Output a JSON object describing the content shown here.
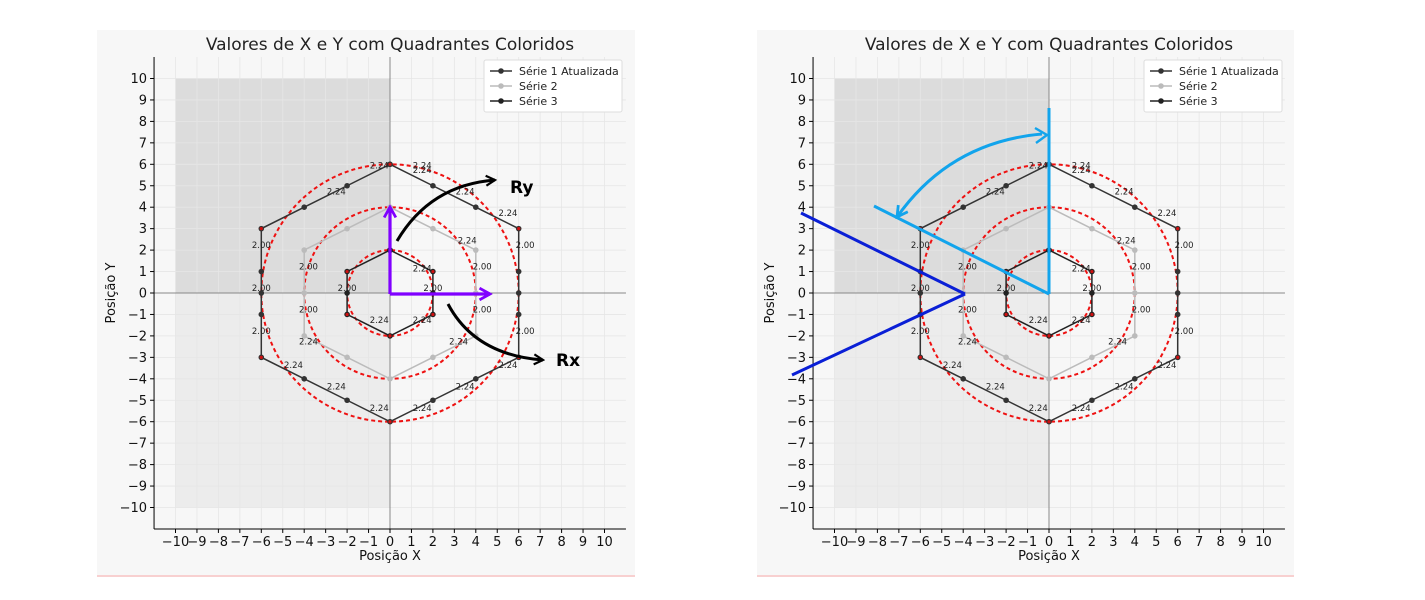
{
  "chart_data": [
    {
      "type": "line",
      "title": "Valores de X e Y com Quadrantes Coloridos",
      "xlabel": "Posição X",
      "ylabel": "Posição Y",
      "xlim": [
        -11,
        11
      ],
      "ylim": [
        -11,
        11
      ],
      "xticks": [
        -10,
        -9,
        -8,
        -7,
        -6,
        -5,
        -4,
        -3,
        -2,
        -1,
        0,
        1,
        2,
        3,
        4,
        5,
        6,
        7,
        8,
        9,
        10
      ],
      "yticks": [
        -10,
        -9,
        -8,
        -7,
        -6,
        -5,
        -4,
        -3,
        -2,
        -1,
        0,
        1,
        2,
        3,
        4,
        5,
        6,
        7,
        8,
        9,
        10
      ],
      "grid": true,
      "legend_position": "top-right",
      "shaded_quadrants": [
        {
          "x": [
            -10,
            0
          ],
          "y": [
            0,
            10
          ],
          "color": "#dcdcdc"
        },
        {
          "x": [
            -10,
            0
          ],
          "y": [
            -10,
            0
          ],
          "color": "#ececec"
        }
      ],
      "series": [
        {
          "name": "Série 1 Atualizada",
          "color": "#333333",
          "x": [
            0,
            2,
            4,
            6,
            6,
            6,
            6,
            6,
            4,
            2,
            0,
            -2,
            -4,
            -6,
            -6,
            -6,
            -6,
            -6,
            -4,
            -2,
            0
          ],
          "y": [
            6,
            5,
            4,
            3,
            1,
            0,
            -1,
            -3,
            -4,
            -5,
            -6,
            -5,
            -4,
            -3,
            -1,
            0,
            1,
            3,
            4,
            5,
            6
          ]
        },
        {
          "name": "Série 2",
          "color": "#bbbbbb",
          "x": [
            0,
            2,
            4,
            4,
            4,
            2,
            0,
            -2,
            -4,
            -4,
            -4,
            -2,
            0
          ],
          "y": [
            4,
            3,
            2,
            0,
            -2,
            -3,
            -4,
            -3,
            -2,
            0,
            2,
            3,
            4
          ]
        },
        {
          "name": "Série 3",
          "color": "#222222",
          "x": [
            0,
            2,
            2,
            2,
            0,
            -2,
            -2,
            -2,
            0
          ],
          "y": [
            2,
            1,
            0,
            -1,
            -2,
            -1,
            0,
            1,
            2
          ]
        }
      ],
      "circles": [
        {
          "radius": 2,
          "color": "#ee1111",
          "style": "dashed"
        },
        {
          "radius": 4,
          "color": "#ee1111",
          "style": "dashed"
        },
        {
          "radius": 6,
          "color": "#ee1111",
          "style": "dashed"
        }
      ],
      "edge_labels": [
        {
          "text": "2.24",
          "x": -0.5,
          "y": 5.8
        },
        {
          "text": "2.24",
          "x": 1.5,
          "y": 5.8
        },
        {
          "text": "2.24",
          "x": -2.5,
          "y": 4.6
        },
        {
          "text": "2.24",
          "x": 3.5,
          "y": 4.6
        },
        {
          "text": "2.24",
          "x": 5.5,
          "y": 3.6
        },
        {
          "text": "2.24",
          "x": 5.5,
          "y": -3.5
        },
        {
          "text": "2.24",
          "x": -4.5,
          "y": -3.5
        },
        {
          "text": "2.24",
          "x": -2.5,
          "y": -4.5
        },
        {
          "text": "2.24",
          "x": 3.5,
          "y": -4.5
        },
        {
          "text": "2.24",
          "x": -0.5,
          "y": -5.5
        },
        {
          "text": "2.24",
          "x": 1.5,
          "y": -5.5
        },
        {
          "text": "2.24",
          "x": -0.5,
          "y": -1.4
        },
        {
          "text": "2.24",
          "x": 1.5,
          "y": -1.4
        },
        {
          "text": "2.24",
          "x": 1.5,
          "y": 5.6
        },
        {
          "text": "2.24",
          "x": -3.8,
          "y": -2.4
        },
        {
          "text": "2.24",
          "x": 3.2,
          "y": -2.4
        },
        {
          "text": "2.24",
          "x": 3.6,
          "y": 2.3
        },
        {
          "text": "2.24",
          "x": 1.5,
          "y": 1.0
        },
        {
          "text": "2.00",
          "x": -6.0,
          "y": 2.1
        },
        {
          "text": "2.00",
          "x": -6.0,
          "y": 0.1
        },
        {
          "text": "2.00",
          "x": -6.0,
          "y": -1.9
        },
        {
          "text": "2.00",
          "x": 6.3,
          "y": 2.1
        },
        {
          "text": "2.00",
          "x": 6.3,
          "y": -1.9
        },
        {
          "text": "2.00",
          "x": -3.8,
          "y": 1.1
        },
        {
          "text": "2.00",
          "x": -3.8,
          "y": -0.9
        },
        {
          "text": "2.00",
          "x": -2.0,
          "y": 0.1
        },
        {
          "text": "2.00",
          "x": 2.0,
          "y": 0.1
        },
        {
          "text": "2.00",
          "x": 4.3,
          "y": 1.1
        },
        {
          "text": "2.00",
          "x": 4.3,
          "y": -0.9
        }
      ]
    },
    {
      "type": "line",
      "title": "Valores de X e Y com Quadrantes Coloridos",
      "xlabel": "Posição X",
      "ylabel": "Posição Y",
      "xlim": [
        -11,
        11
      ],
      "ylim": [
        -11,
        11
      ],
      "xticks": [
        -10,
        -9,
        -8,
        -7,
        -6,
        -5,
        -4,
        -3,
        -2,
        -1,
        0,
        1,
        2,
        3,
        4,
        5,
        6,
        7,
        8,
        9,
        10
      ],
      "yticks": [
        -10,
        -9,
        -8,
        -7,
        -6,
        -5,
        -4,
        -3,
        -2,
        -1,
        0,
        1,
        2,
        3,
        4,
        5,
        6,
        7,
        8,
        9,
        10
      ],
      "grid": true,
      "legend_position": "top-right",
      "shaded_quadrants": [
        {
          "x": [
            -10,
            0
          ],
          "y": [
            0,
            10
          ],
          "color": "#dcdcdc"
        },
        {
          "x": [
            -10,
            0
          ],
          "y": [
            -10,
            0
          ],
          "color": "#ececec"
        }
      ],
      "series": [
        {
          "name": "Série 1 Atualizada",
          "color": "#333333",
          "x": [
            0,
            2,
            4,
            6,
            6,
            6,
            6,
            6,
            4,
            2,
            0,
            -2,
            -4,
            -6,
            -6,
            -6,
            -6,
            -6,
            -4,
            -2,
            0
          ],
          "y": [
            6,
            5,
            4,
            3,
            1,
            0,
            -1,
            -3,
            -4,
            -5,
            -6,
            -5,
            -4,
            -3,
            -1,
            0,
            1,
            3,
            4,
            5,
            6
          ]
        },
        {
          "name": "Série 2",
          "color": "#bbbbbb",
          "x": [
            0,
            2,
            4,
            4,
            4,
            2,
            0,
            -2,
            -4,
            -4,
            -4,
            -2,
            0
          ],
          "y": [
            4,
            3,
            2,
            0,
            -2,
            -3,
            -4,
            -3,
            -2,
            0,
            2,
            3,
            4
          ]
        },
        {
          "name": "Série 3",
          "color": "#222222",
          "x": [
            0,
            2,
            2,
            2,
            0,
            -2,
            -2,
            -2,
            0
          ],
          "y": [
            2,
            1,
            0,
            -1,
            -2,
            -1,
            0,
            1,
            2
          ]
        }
      ],
      "circles": [
        {
          "radius": 2,
          "color": "#ee1111",
          "style": "dashed"
        },
        {
          "radius": 4,
          "color": "#ee1111",
          "style": "dashed"
        },
        {
          "radius": 6,
          "color": "#ee1111",
          "style": "dashed"
        }
      ],
      "edge_labels": [
        {
          "text": "2.24",
          "x": -0.5,
          "y": 5.8
        },
        {
          "text": "2.24",
          "x": 1.5,
          "y": 5.8
        },
        {
          "text": "2.24",
          "x": -2.5,
          "y": 4.6
        },
        {
          "text": "2.24",
          "x": 3.5,
          "y": 4.6
        },
        {
          "text": "2.24",
          "x": 5.5,
          "y": 3.6
        },
        {
          "text": "2.24",
          "x": 5.5,
          "y": -3.5
        },
        {
          "text": "2.24",
          "x": -4.5,
          "y": -3.5
        },
        {
          "text": "2.24",
          "x": -2.5,
          "y": -4.5
        },
        {
          "text": "2.24",
          "x": 3.5,
          "y": -4.5
        },
        {
          "text": "2.24",
          "x": -0.5,
          "y": -5.5
        },
        {
          "text": "2.24",
          "x": 1.5,
          "y": -5.5
        },
        {
          "text": "2.24",
          "x": -0.5,
          "y": -1.4
        },
        {
          "text": "2.24",
          "x": 1.5,
          "y": -1.4
        },
        {
          "text": "2.24",
          "x": 1.5,
          "y": 5.6
        },
        {
          "text": "2.24",
          "x": -3.8,
          "y": -2.4
        },
        {
          "text": "2.24",
          "x": 3.2,
          "y": -2.4
        },
        {
          "text": "2.24",
          "x": 3.6,
          "y": 2.3
        },
        {
          "text": "2.24",
          "x": 1.5,
          "y": 1.0
        },
        {
          "text": "2.00",
          "x": -6.0,
          "y": 2.1
        },
        {
          "text": "2.00",
          "x": -6.0,
          "y": 0.1
        },
        {
          "text": "2.00",
          "x": -6.0,
          "y": -1.9
        },
        {
          "text": "2.00",
          "x": 6.3,
          "y": 2.1
        },
        {
          "text": "2.00",
          "x": 6.3,
          "y": -1.9
        },
        {
          "text": "2.00",
          "x": -3.8,
          "y": 1.1
        },
        {
          "text": "2.00",
          "x": -3.8,
          "y": -0.9
        },
        {
          "text": "2.00",
          "x": -2.0,
          "y": 0.1
        },
        {
          "text": "2.00",
          "x": 2.0,
          "y": 0.1
        },
        {
          "text": "2.00",
          "x": 4.3,
          "y": 1.1
        },
        {
          "text": "2.00",
          "x": 4.3,
          "y": -0.9
        }
      ]
    }
  ],
  "annotations_left": {
    "ry_label": "Ry",
    "rx_label": "Rx",
    "vector_color": "#8000ff",
    "arrow_color": "#000000"
  },
  "annotations_right": {
    "blue_color": "#0a1fd6",
    "cyan_color": "#12a4ec"
  }
}
